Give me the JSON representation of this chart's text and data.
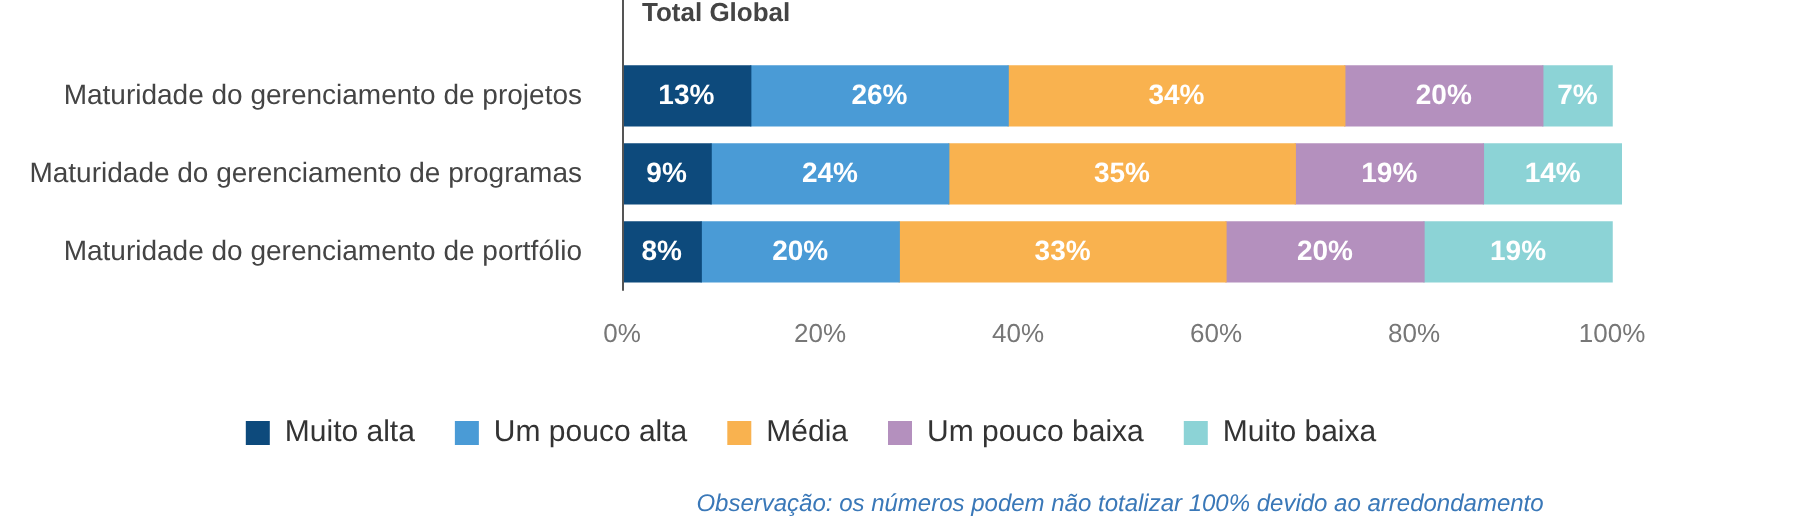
{
  "chart_data": {
    "type": "bar",
    "orientation": "horizontal",
    "stacked": true,
    "title": "Total Global",
    "categories": [
      "Maturidade do gerenciamento de projetos",
      "Maturidade do gerenciamento de programas",
      "Maturidade do gerenciamento de portfólio"
    ],
    "series": [
      {
        "name": "Muito alta",
        "color": "#0d4a7c",
        "values": [
          13,
          9,
          8
        ],
        "value_labels": [
          "13%",
          "9%",
          "8%"
        ]
      },
      {
        "name": "Um pouco alta",
        "color": "#4a9bd6",
        "values": [
          26,
          24,
          20
        ],
        "value_labels": [
          "26%",
          "24%",
          "20%"
        ]
      },
      {
        "name": "Média",
        "color": "#f9b24f",
        "values": [
          34,
          35,
          33
        ],
        "value_labels": [
          "34%",
          "35%",
          "33%"
        ]
      },
      {
        "name": "Um pouco baixa",
        "color": "#b490be",
        "values": [
          20,
          19,
          20
        ],
        "value_labels": [
          "20%",
          "19%",
          "20%"
        ]
      },
      {
        "name": "Muito baixa",
        "color": "#8cd3d6",
        "values": [
          7,
          14,
          19
        ],
        "value_labels": [
          "7%",
          "14%",
          "19%"
        ]
      }
    ],
    "xlim": [
      0,
      101
    ],
    "xticks": [
      {
        "value": 0,
        "label": "0%"
      },
      {
        "value": 20,
        "label": "20%"
      },
      {
        "value": 40,
        "label": "40%"
      },
      {
        "value": 60,
        "label": "60%"
      },
      {
        "value": 80,
        "label": "80%"
      },
      {
        "value": 100,
        "label": "100%"
      }
    ],
    "grid": false,
    "legend": "bottom",
    "annotations": [
      "Observação: os números podem não totalizar 100% devido ao arredondamento"
    ]
  }
}
